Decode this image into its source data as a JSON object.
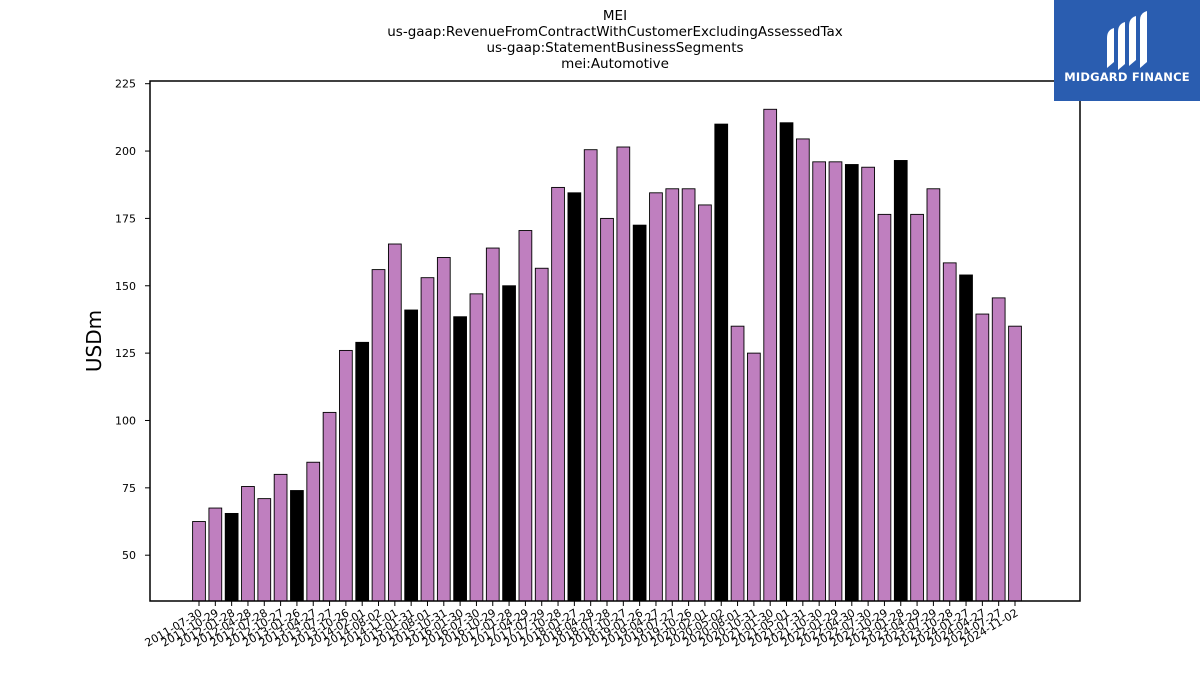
{
  "chart_data": {
    "type": "bar",
    "title_lines": [
      "MEI",
      "us-gaap:RevenueFromContractWithCustomerExcludingAssessedTax",
      "us-gaap:StatementBusinessSegments",
      "mei:Automotive"
    ],
    "ylabel": "USDm",
    "xlabel": "",
    "ylim": [
      33,
      226
    ],
    "yticks": [
      50,
      75,
      100,
      125,
      150,
      175,
      200,
      225
    ],
    "grid": false,
    "colors": {
      "regular": "#bf7fbf",
      "highlight": "#000000",
      "edge": "#000000"
    },
    "categories": [
      "2011-07-30",
      "2011-10-29",
      "2012-01-28",
      "2012-04-28",
      "2012-07-28",
      "2012-10-27",
      "2013-01-26",
      "2013-04-27",
      "2013-07-27",
      "2013-10-26",
      "2014-02-01",
      "2014-08-02",
      "2014-11-01",
      "2015-01-31",
      "2015-08-01",
      "2015-10-31",
      "2016-01-30",
      "2016-07-30",
      "2016-10-29",
      "2017-01-28",
      "2017-04-29",
      "2017-07-29",
      "2017-10-28",
      "2018-01-27",
      "2018-04-28",
      "2018-07-28",
      "2018-10-27",
      "2019-01-26",
      "2019-04-27",
      "2019-07-27",
      "2019-10-26",
      "2020-02-01",
      "2020-05-02",
      "2020-08-01",
      "2020-10-31",
      "2021-01-30",
      "2021-05-01",
      "2021-07-31",
      "2021-10-30",
      "2022-01-29",
      "2022-04-30",
      "2022-07-30",
      "2022-10-29",
      "2023-01-28",
      "2023-04-29",
      "2023-07-29",
      "2023-10-28",
      "2024-01-27",
      "2024-04-27",
      "2024-07-27",
      "2024-11-02"
    ],
    "values": [
      62.5,
      67.5,
      65.5,
      75.5,
      71,
      80,
      74,
      84.5,
      103,
      126,
      129,
      156,
      165.5,
      141,
      153,
      160.5,
      138.5,
      147,
      164,
      150,
      170.5,
      156.5,
      186.5,
      184.5,
      200.5,
      175,
      201.5,
      172.5,
      184.5,
      186,
      186,
      180,
      210,
      135,
      125,
      215.5,
      210.5,
      204.5,
      196,
      196,
      195,
      194,
      176.5,
      196.5,
      176.5,
      186,
      158.5,
      154,
      139.5,
      145.5,
      135
    ],
    "highlight": [
      false,
      false,
      true,
      false,
      false,
      false,
      true,
      false,
      false,
      false,
      true,
      false,
      false,
      true,
      false,
      false,
      true,
      false,
      false,
      true,
      false,
      false,
      false,
      true,
      false,
      false,
      false,
      true,
      false,
      false,
      false,
      false,
      true,
      false,
      false,
      false,
      true,
      false,
      false,
      false,
      true,
      false,
      false,
      true,
      false,
      false,
      false,
      true,
      false,
      false,
      false
    ]
  },
  "logo": {
    "text": "MIDGARD FINANCE",
    "icon": "midgard-logo-mark"
  }
}
